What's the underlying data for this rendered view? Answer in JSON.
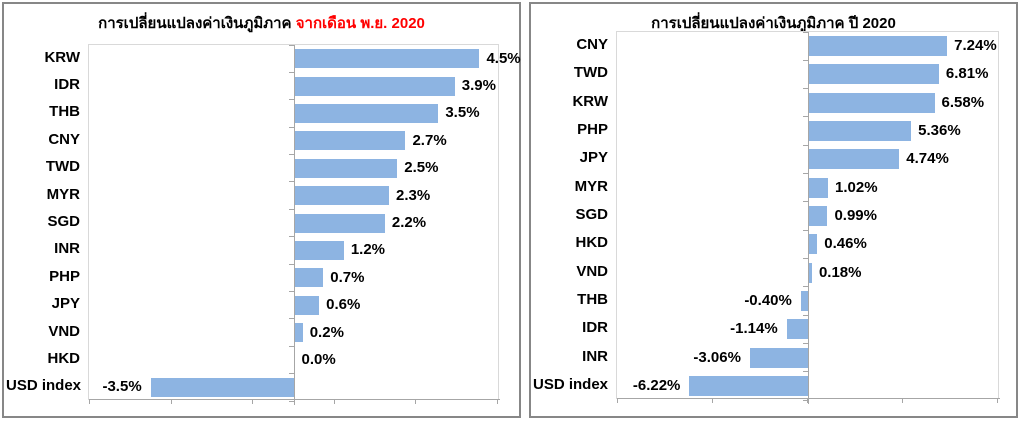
{
  "page": {
    "background": "#ffffff"
  },
  "chart_data": [
    {
      "type": "bar",
      "orientation": "horizontal",
      "title": "การเปลี่ยนแปลงค่าเงินภูมิภาค จากเดือน พ.ย. 2020",
      "title_main": "การเปลี่ยนแปลงค่าเงินภูมิภาค ",
      "title_highlight": "จากเดือน พ.ย. 2020",
      "title_highlight_color": "#FF0000",
      "categories": [
        "KRW",
        "IDR",
        "THB",
        "CNY",
        "TWD",
        "MYR",
        "SGD",
        "INR",
        "PHP",
        "JPY",
        "VND",
        "HKD",
        "USD index"
      ],
      "values": [
        4.5,
        3.9,
        3.5,
        2.7,
        2.5,
        2.3,
        2.2,
        1.2,
        0.7,
        0.6,
        0.2,
        0.0,
        -3.5
      ],
      "value_labels": [
        "4.5%",
        "3.9%",
        "3.5%",
        "2.7%",
        "2.5%",
        "2.3%",
        "2.2%",
        "1.2%",
        "0.7%",
        "0.6%",
        "0.2%",
        "0.0%",
        "-3.5%"
      ],
      "xlim": [
        -5,
        5
      ],
      "x_tick_count": 6,
      "x_tick_labels_visible": false,
      "gridlines": false,
      "legend": false,
      "bar_color": "#8DB4E2",
      "axis_color": "#A6A6A6",
      "plot_border_color": "#D9D9D9"
    },
    {
      "type": "bar",
      "orientation": "horizontal",
      "title": "การเปลี่ยนแปลงค่าเงินภูมิภาค ปี 2020",
      "title_main": "การเปลี่ยนแปลงค่าเงินภูมิภาค ปี 2020",
      "title_highlight": "",
      "title_highlight_color": "#000000",
      "categories": [
        "CNY",
        "TWD",
        "KRW",
        "PHP",
        "JPY",
        "MYR",
        "SGD",
        "HKD",
        "VND",
        "THB",
        "IDR",
        "INR",
        "USD index"
      ],
      "values": [
        7.24,
        6.81,
        6.58,
        5.36,
        4.74,
        1.02,
        0.99,
        0.46,
        0.18,
        -0.4,
        -1.14,
        -3.06,
        -6.22
      ],
      "value_labels": [
        "7.24%",
        "6.81%",
        "6.58%",
        "5.36%",
        "4.74%",
        "1.02%",
        "0.99%",
        "0.46%",
        "0.18%",
        "-0.40%",
        "-1.14%",
        "-3.06%",
        "-6.22%"
      ],
      "xlim": [
        -10,
        10
      ],
      "x_tick_count": 5,
      "x_tick_labels_visible": false,
      "gridlines": false,
      "legend": false,
      "bar_color": "#8DB4E2",
      "axis_color": "#A6A6A6",
      "plot_border_color": "#D9D9D9"
    }
  ]
}
